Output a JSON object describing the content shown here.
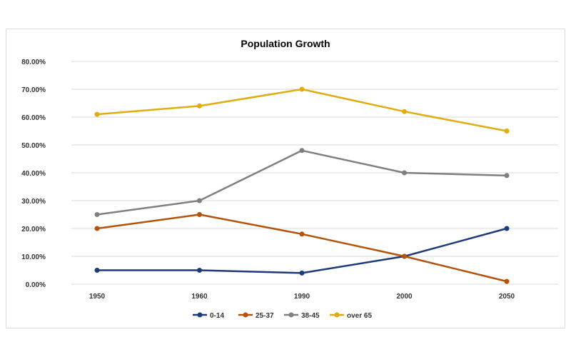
{
  "chart_data": {
    "type": "line",
    "title": "Population Growth",
    "xlabel": "",
    "ylabel": "",
    "categories": [
      "1950",
      "1960",
      "1990",
      "2000",
      "2050"
    ],
    "ylim": [
      0,
      80
    ],
    "yticks": [
      "0.00%",
      "10.00%",
      "20.00%",
      "30.00%",
      "40.00%",
      "50.00%",
      "60.00%",
      "70.00%",
      "80.00%"
    ],
    "grid": true,
    "legend_position": "bottom",
    "series": [
      {
        "name": "0-14",
        "color": "#1f3a7a",
        "values": [
          5,
          5,
          4,
          10,
          20
        ]
      },
      {
        "name": "25-37",
        "color": "#b35309",
        "values": [
          20,
          25,
          18,
          10,
          1
        ]
      },
      {
        "name": "38-45",
        "color": "#7f7f7f",
        "values": [
          25,
          30,
          48,
          40,
          39
        ]
      },
      {
        "name": "over 65",
        "color": "#e0ac10",
        "values": [
          61,
          64,
          70,
          62,
          55
        ]
      }
    ]
  }
}
